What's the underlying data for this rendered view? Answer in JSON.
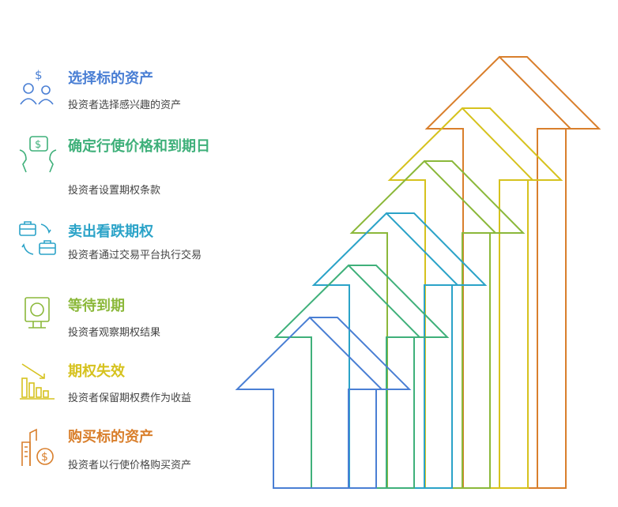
{
  "steps": [
    {
      "title": "选择标的资产",
      "desc": "投资者选择感兴趣的资产",
      "icon": "investors-dollar-icon",
      "color": "#4a7fd4"
    },
    {
      "title": "确定行使价格和到期日",
      "desc": "投资者设置期权条款",
      "icon": "negotiation-dollar-icon",
      "color": "#3fb07a"
    },
    {
      "title": "卖出看跌期权",
      "desc": "投资者通过交易平台执行交易",
      "icon": "briefcase-exchange-icon",
      "color": "#2ba3c8"
    },
    {
      "title": "等待到期",
      "desc": "投资者观察期权结果",
      "icon": "monitor-clock-icon",
      "color": "#8bb83a"
    },
    {
      "title": "期权失效",
      "desc": "投资者保留期权费作为收益",
      "icon": "declining-bars-icon",
      "color": "#d6c21e"
    },
    {
      "title": "购买标的资产",
      "desc": "投资者以行使价格购买资产",
      "icon": "building-dollar-icon",
      "color": "#d97f2c"
    }
  ]
}
